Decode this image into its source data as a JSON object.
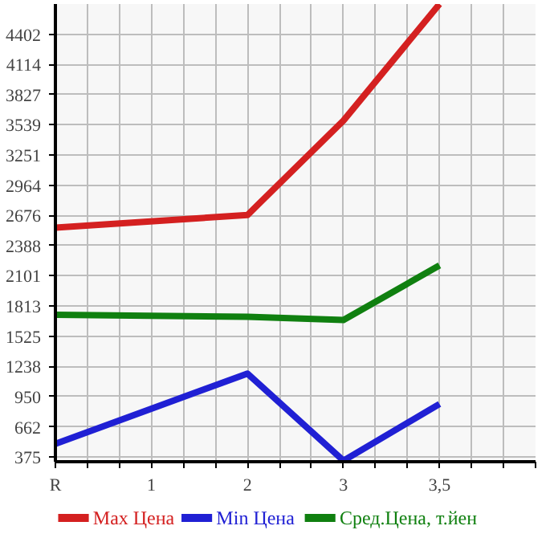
{
  "chart_data": {
    "type": "line",
    "categories": [
      "R",
      "1",
      "2",
      "3",
      "3,5"
    ],
    "series": [
      {
        "name": "Max Цена",
        "color": "#d42020",
        "values": [
          2560,
          null,
          2680,
          3580,
          4690
        ]
      },
      {
        "name": "Min Цена",
        "color": "#2020d4",
        "values": [
          500,
          null,
          1170,
          340,
          880
        ]
      },
      {
        "name": "Сред.Цена, т.йен",
        "color": "#108010",
        "values": [
          1730,
          null,
          1710,
          1680,
          2200
        ]
      }
    ],
    "ylim": [
      330,
      4690
    ],
    "yticks": [
      375,
      662,
      950,
      1238,
      1525,
      1813,
      2101,
      2388,
      2676,
      2964,
      3251,
      3539,
      3827,
      4114,
      4402
    ],
    "grid": true,
    "legend": "bottom",
    "marker": "none",
    "line_style": "solid"
  }
}
